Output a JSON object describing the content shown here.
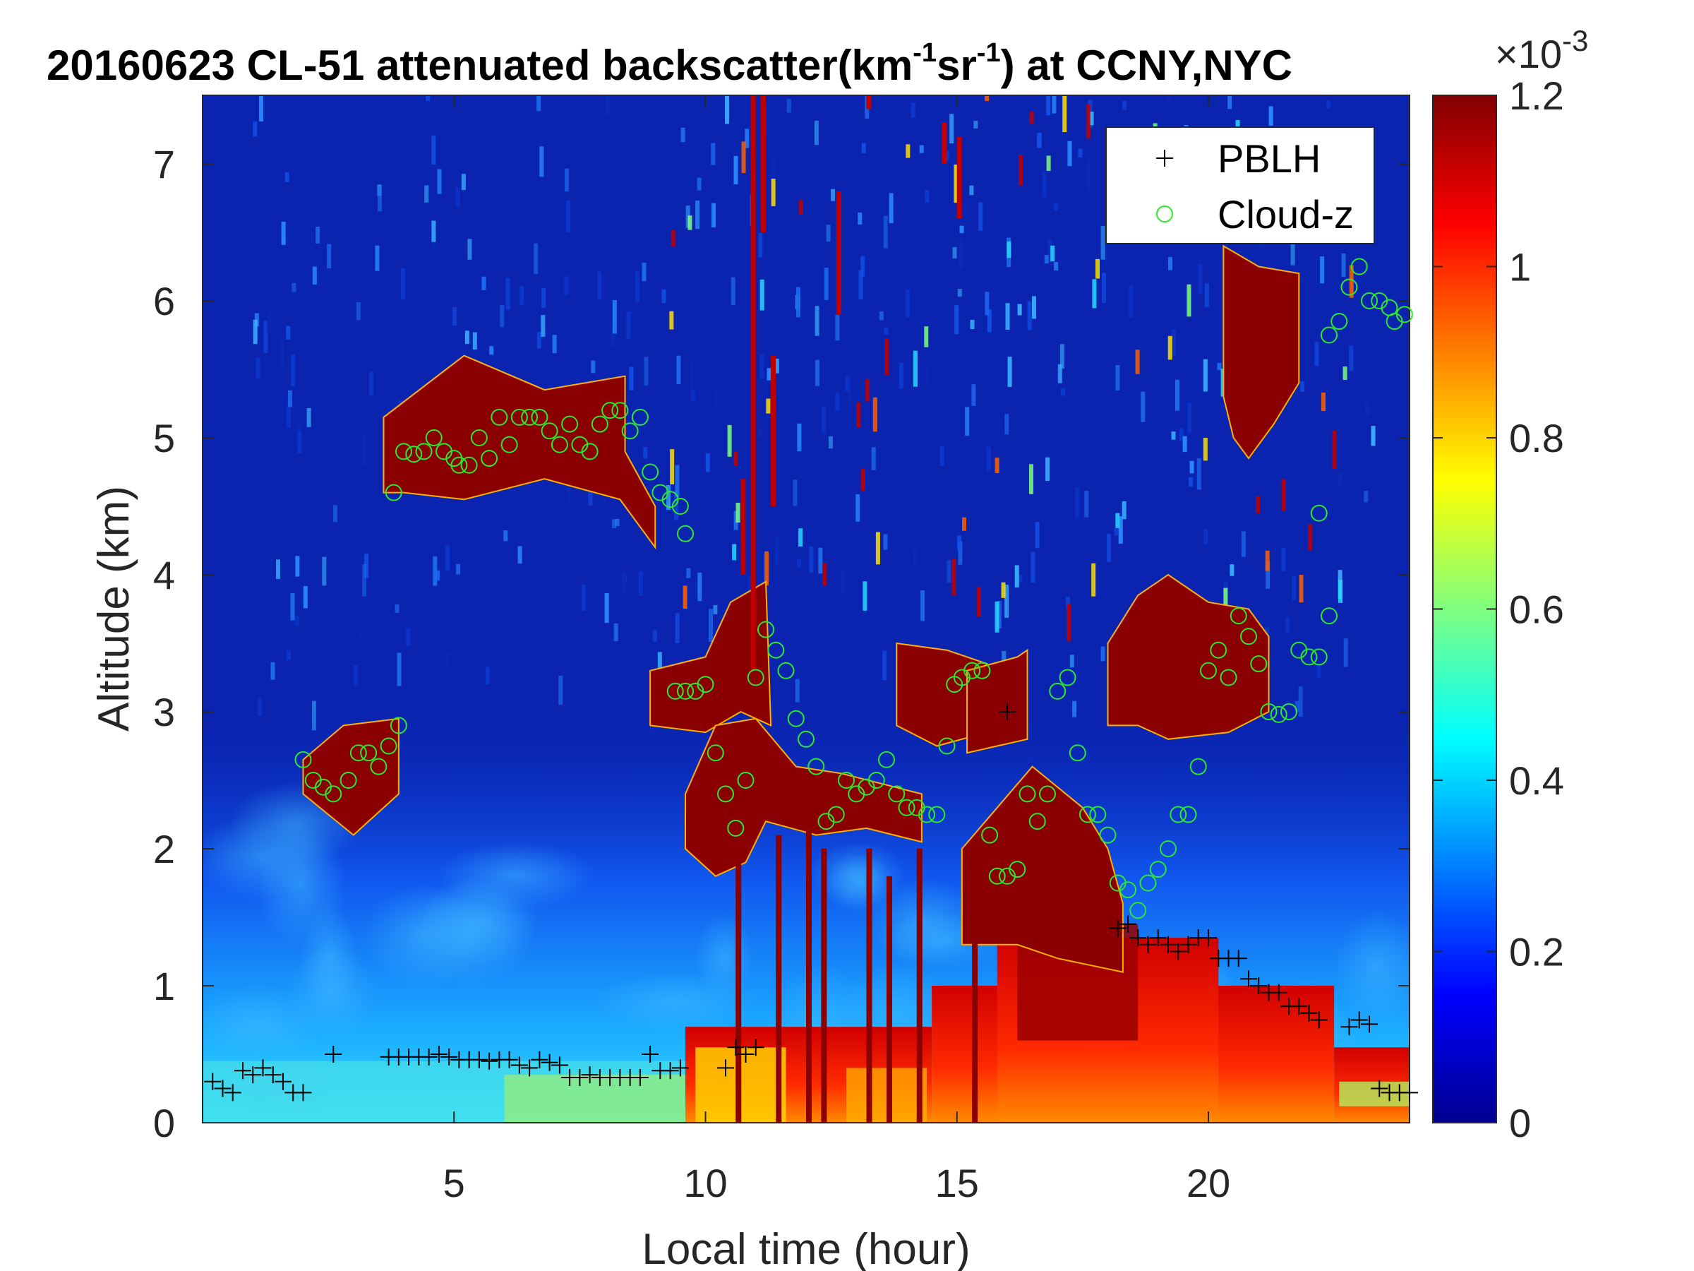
{
  "chart_data": {
    "type": "heatmap",
    "title": {
      "prefix": "20160623  CL-51 attenuated backscatter(km",
      "sup1": "-1",
      "mid": "sr",
      "sup2": "-1",
      "suffix": ") at CCNY,NYC"
    },
    "xlabel": "Local time (hour)",
    "ylabel": "Altitude (km)",
    "xlim": [
      0,
      24
    ],
    "ylim": [
      0,
      7.5
    ],
    "xticks": [
      "5",
      "10",
      "15",
      "20"
    ],
    "yticks": [
      "0",
      "1",
      "2",
      "3",
      "4",
      "5",
      "6",
      "7"
    ],
    "colorbar": {
      "colormap": "jet",
      "clim": [
        0,
        0.0012
      ],
      "ticks": [
        "0",
        "0.2",
        "0.4",
        "0.6",
        "0.8",
        "1",
        "1.2"
      ],
      "exponent_base": "×10",
      "exponent": "-3"
    },
    "legend": {
      "position": "top-right",
      "entries": [
        {
          "label": "PBLH",
          "marker": "+",
          "color": "#000000"
        },
        {
          "label": "Cloud-z",
          "marker": "o",
          "color": "#2ee82e"
        }
      ]
    },
    "series": [
      {
        "name": "PBLH",
        "points": [
          [
            0.2,
            0.3
          ],
          [
            0.4,
            0.25
          ],
          [
            0.6,
            0.22
          ],
          [
            0.8,
            0.38
          ],
          [
            1.0,
            0.35
          ],
          [
            1.2,
            0.4
          ],
          [
            1.4,
            0.35
          ],
          [
            1.6,
            0.3
          ],
          [
            1.8,
            0.22
          ],
          [
            2.0,
            0.22
          ],
          [
            2.6,
            0.5
          ],
          [
            3.7,
            0.48
          ],
          [
            3.9,
            0.48
          ],
          [
            4.1,
            0.48
          ],
          [
            4.3,
            0.48
          ],
          [
            4.5,
            0.48
          ],
          [
            4.7,
            0.5
          ],
          [
            4.9,
            0.48
          ],
          [
            5.1,
            0.46
          ],
          [
            5.3,
            0.46
          ],
          [
            5.5,
            0.46
          ],
          [
            5.7,
            0.45
          ],
          [
            5.9,
            0.46
          ],
          [
            6.1,
            0.46
          ],
          [
            6.3,
            0.42
          ],
          [
            6.5,
            0.4
          ],
          [
            6.7,
            0.46
          ],
          [
            6.9,
            0.44
          ],
          [
            7.1,
            0.42
          ],
          [
            7.3,
            0.33
          ],
          [
            7.5,
            0.33
          ],
          [
            7.7,
            0.35
          ],
          [
            7.9,
            0.33
          ],
          [
            8.1,
            0.33
          ],
          [
            8.3,
            0.33
          ],
          [
            8.5,
            0.33
          ],
          [
            8.7,
            0.33
          ],
          [
            8.9,
            0.5
          ],
          [
            9.1,
            0.38
          ],
          [
            9.3,
            0.38
          ],
          [
            9.5,
            0.4
          ],
          [
            10.4,
            0.4
          ],
          [
            10.6,
            0.55
          ],
          [
            10.8,
            0.5
          ],
          [
            11.0,
            0.55
          ],
          [
            16.0,
            3.0
          ],
          [
            18.2,
            1.42
          ],
          [
            18.4,
            1.45
          ],
          [
            18.6,
            1.35
          ],
          [
            18.8,
            1.3
          ],
          [
            19.0,
            1.35
          ],
          [
            19.2,
            1.3
          ],
          [
            19.4,
            1.25
          ],
          [
            19.6,
            1.3
          ],
          [
            19.8,
            1.35
          ],
          [
            20.0,
            1.35
          ],
          [
            20.2,
            1.2
          ],
          [
            20.4,
            1.2
          ],
          [
            20.6,
            1.2
          ],
          [
            20.8,
            1.05
          ],
          [
            21.0,
            1.0
          ],
          [
            21.2,
            0.95
          ],
          [
            21.4,
            0.95
          ],
          [
            21.6,
            0.85
          ],
          [
            21.8,
            0.85
          ],
          [
            22.0,
            0.8
          ],
          [
            22.2,
            0.75
          ],
          [
            22.8,
            0.7
          ],
          [
            23.0,
            0.75
          ],
          [
            23.2,
            0.72
          ],
          [
            23.4,
            0.25
          ],
          [
            23.6,
            0.22
          ],
          [
            23.8,
            0.22
          ],
          [
            24.0,
            0.22
          ]
        ]
      },
      {
        "name": "Cloud-z",
        "points": [
          [
            2.0,
            2.65
          ],
          [
            2.2,
            2.5
          ],
          [
            2.4,
            2.45
          ],
          [
            2.6,
            2.4
          ],
          [
            2.9,
            2.5
          ],
          [
            3.1,
            2.7
          ],
          [
            3.3,
            2.7
          ],
          [
            3.5,
            2.6
          ],
          [
            3.7,
            2.75
          ],
          [
            3.9,
            2.9
          ],
          [
            3.8,
            4.6
          ],
          [
            4.0,
            4.9
          ],
          [
            4.2,
            4.88
          ],
          [
            4.4,
            4.9
          ],
          [
            4.6,
            5.0
          ],
          [
            4.8,
            4.9
          ],
          [
            5.0,
            4.85
          ],
          [
            5.1,
            4.8
          ],
          [
            5.3,
            4.8
          ],
          [
            5.5,
            5.0
          ],
          [
            5.7,
            4.85
          ],
          [
            5.9,
            5.15
          ],
          [
            6.1,
            4.95
          ],
          [
            6.3,
            5.15
          ],
          [
            6.5,
            5.15
          ],
          [
            6.7,
            5.15
          ],
          [
            6.9,
            5.05
          ],
          [
            7.1,
            4.95
          ],
          [
            7.3,
            5.1
          ],
          [
            7.5,
            4.95
          ],
          [
            7.7,
            4.9
          ],
          [
            7.9,
            5.1
          ],
          [
            8.1,
            5.2
          ],
          [
            8.3,
            5.2
          ],
          [
            8.5,
            5.05
          ],
          [
            8.7,
            5.15
          ],
          [
            8.9,
            4.75
          ],
          [
            9.1,
            4.6
          ],
          [
            9.3,
            4.55
          ],
          [
            9.5,
            4.5
          ],
          [
            9.6,
            4.3
          ],
          [
            9.4,
            3.15
          ],
          [
            9.6,
            3.15
          ],
          [
            9.8,
            3.15
          ],
          [
            10.0,
            3.2
          ],
          [
            10.2,
            2.7
          ],
          [
            10.4,
            2.4
          ],
          [
            10.6,
            2.15
          ],
          [
            10.8,
            2.5
          ],
          [
            11.0,
            3.25
          ],
          [
            11.2,
            3.6
          ],
          [
            11.4,
            3.45
          ],
          [
            11.6,
            3.3
          ],
          [
            11.8,
            2.95
          ],
          [
            12.0,
            2.8
          ],
          [
            12.2,
            2.6
          ],
          [
            12.4,
            2.2
          ],
          [
            12.6,
            2.25
          ],
          [
            12.8,
            2.5
          ],
          [
            13.0,
            2.4
          ],
          [
            13.2,
            2.45
          ],
          [
            13.4,
            2.5
          ],
          [
            13.6,
            2.65
          ],
          [
            13.8,
            2.4
          ],
          [
            14.0,
            2.3
          ],
          [
            14.2,
            2.3
          ],
          [
            14.4,
            2.25
          ],
          [
            14.6,
            2.25
          ],
          [
            14.8,
            2.75
          ],
          [
            14.95,
            3.2
          ],
          [
            15.1,
            3.25
          ],
          [
            15.3,
            3.3
          ],
          [
            15.5,
            3.3
          ],
          [
            15.65,
            2.1
          ],
          [
            15.8,
            1.8
          ],
          [
            16.0,
            1.8
          ],
          [
            16.2,
            1.85
          ],
          [
            16.4,
            2.4
          ],
          [
            16.6,
            2.2
          ],
          [
            16.8,
            2.4
          ],
          [
            17.0,
            3.15
          ],
          [
            17.2,
            3.25
          ],
          [
            17.4,
            2.7
          ],
          [
            17.6,
            2.25
          ],
          [
            17.8,
            2.25
          ],
          [
            18.0,
            2.1
          ],
          [
            18.2,
            1.75
          ],
          [
            18.4,
            1.7
          ],
          [
            18.6,
            1.55
          ],
          [
            18.8,
            1.75
          ],
          [
            19.0,
            1.85
          ],
          [
            19.2,
            2.0
          ],
          [
            19.4,
            2.25
          ],
          [
            19.6,
            2.25
          ],
          [
            19.8,
            2.6
          ],
          [
            20.0,
            3.3
          ],
          [
            20.2,
            3.45
          ],
          [
            20.4,
            3.25
          ],
          [
            20.6,
            3.7
          ],
          [
            20.8,
            3.55
          ],
          [
            21.0,
            3.35
          ],
          [
            21.2,
            3.0
          ],
          [
            21.4,
            2.98
          ],
          [
            21.6,
            3.0
          ],
          [
            21.8,
            3.45
          ],
          [
            22.0,
            3.4
          ],
          [
            22.2,
            3.4
          ],
          [
            22.4,
            3.7
          ],
          [
            22.2,
            4.45
          ],
          [
            22.4,
            5.75
          ],
          [
            22.6,
            5.85
          ],
          [
            22.8,
            6.1
          ],
          [
            23.0,
            6.25
          ],
          [
            23.2,
            6.0
          ],
          [
            23.4,
            6.0
          ],
          [
            23.6,
            5.95
          ],
          [
            23.7,
            5.85
          ],
          [
            23.9,
            5.9
          ]
        ]
      }
    ]
  }
}
